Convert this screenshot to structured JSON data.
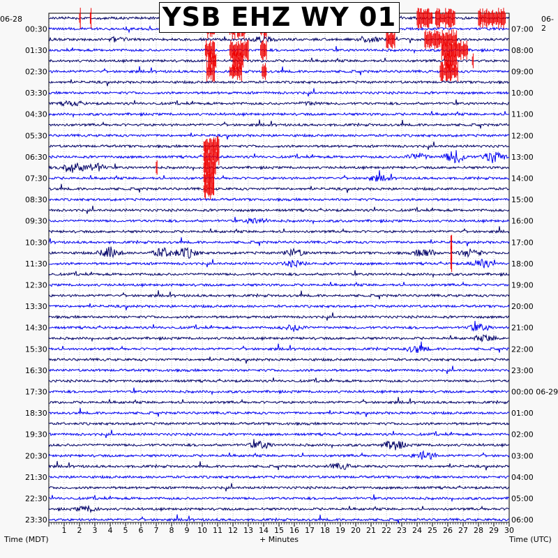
{
  "title": "YSB EHZ WY 01",
  "date_left": "06-28",
  "date_right": "06-2",
  "xlabel_left": "Time (MDT)",
  "xlabel_center": "+ Minutes",
  "xlabel_right": "Time (UTC)",
  "colors": {
    "dark_trace": "#000066",
    "blue_trace": "#0000ee",
    "clip": "#ee0000",
    "grid": "#999999"
  },
  "chart_data": {
    "type": "line",
    "title": "YSB EHZ WY 01",
    "xlabel": "+ Minutes",
    "xlim": [
      0,
      30
    ],
    "x_ticks": [
      "1",
      "2",
      "3",
      "4",
      "5",
      "6",
      "7",
      "8",
      "9",
      "10",
      "11",
      "12",
      "13",
      "14",
      "15",
      "16",
      "17",
      "18",
      "19",
      "20",
      "21",
      "22",
      "23",
      "24",
      "25",
      "26",
      "27",
      "28",
      "29",
      "30"
    ],
    "left_times": [
      "00:30",
      "01:30",
      "02:30",
      "03:30",
      "04:30",
      "05:30",
      "06:30",
      "07:30",
      "08:30",
      "09:30",
      "10:30",
      "11:30",
      "12:30",
      "13:30",
      "14:30",
      "15:30",
      "16:30",
      "17:30",
      "18:30",
      "19:30",
      "20:30",
      "21:30",
      "22:30",
      "23:30"
    ],
    "right_times": [
      "07:00",
      "08:00",
      "09:00",
      "10:00",
      "11:00",
      "12:00",
      "13:00",
      "14:00",
      "15:00",
      "16:00",
      "17:00",
      "18:00",
      "19:00",
      "20:00",
      "21:00",
      "22:00",
      "23:00",
      "00:00 06-29",
      "01:00",
      "02:00",
      "03:00",
      "04:00",
      "05:00",
      "06:00"
    ],
    "rows": 48,
    "minutes_per_row": 30,
    "trace_colors": [
      "dark",
      "blue"
    ],
    "clipped_intervals": [
      {
        "row": 0,
        "start": 2.0,
        "end": 2.1
      },
      {
        "row": 0,
        "start": 2.7,
        "end": 2.8
      },
      {
        "row": 0,
        "start": 22.0,
        "end": 22.7
      },
      {
        "row": 0,
        "start": 24.0,
        "end": 25.0
      },
      {
        "row": 0,
        "start": 25.2,
        "end": 26.5
      },
      {
        "row": 0,
        "start": 28.0,
        "end": 29.8
      },
      {
        "row": 1,
        "start": 10.3,
        "end": 10.8
      },
      {
        "row": 1,
        "start": 11.8,
        "end": 12.8
      },
      {
        "row": 1,
        "start": 13.8,
        "end": 14.2
      },
      {
        "row": 2,
        "start": 22.0,
        "end": 22.6
      },
      {
        "row": 2,
        "start": 24.5,
        "end": 26.6
      },
      {
        "row": 3,
        "start": 10.2,
        "end": 10.8
      },
      {
        "row": 3,
        "start": 11.8,
        "end": 13.0
      },
      {
        "row": 3,
        "start": 13.8,
        "end": 14.2
      },
      {
        "row": 3,
        "start": 25.6,
        "end": 27.3
      },
      {
        "row": 4,
        "start": 10.4,
        "end": 10.9
      },
      {
        "row": 4,
        "start": 12.0,
        "end": 12.7
      },
      {
        "row": 4,
        "start": 25.8,
        "end": 26.6
      },
      {
        "row": 4,
        "start": 27.6,
        "end": 27.7
      },
      {
        "row": 5,
        "start": 10.3,
        "end": 10.8
      },
      {
        "row": 5,
        "start": 11.8,
        "end": 12.6
      },
      {
        "row": 5,
        "start": 13.9,
        "end": 14.2
      },
      {
        "row": 5,
        "start": 25.5,
        "end": 26.7
      },
      {
        "row": 12,
        "start": 10.1,
        "end": 11.1
      },
      {
        "row": 13,
        "start": 10.1,
        "end": 11.1
      },
      {
        "row": 14,
        "start": 10.1,
        "end": 10.9
      },
      {
        "row": 14,
        "start": 7.0,
        "end": 7.1
      },
      {
        "row": 15,
        "start": 10.1,
        "end": 10.8
      },
      {
        "row": 16,
        "start": 10.1,
        "end": 10.8
      },
      {
        "row": 21,
        "start": 26.2,
        "end": 26.3
      },
      {
        "row": 22,
        "start": 26.2,
        "end": 26.3
      },
      {
        "row": 23,
        "start": 26.2,
        "end": 26.3
      }
    ],
    "bursts": [
      {
        "row": 2,
        "center": 4.5,
        "amp": 3
      },
      {
        "row": 2,
        "center": 14.0,
        "amp": 4
      },
      {
        "row": 2,
        "center": 21.0,
        "amp": 3
      },
      {
        "row": 8,
        "center": 1.5,
        "amp": 3
      },
      {
        "row": 8,
        "center": 17.0,
        "amp": 2
      },
      {
        "row": 14,
        "center": 1.5,
        "amp": 8
      },
      {
        "row": 14,
        "center": 3.0,
        "amp": 6
      },
      {
        "row": 13,
        "center": 26.5,
        "amp": 9
      },
      {
        "row": 13,
        "center": 29.0,
        "amp": 9
      },
      {
        "row": 13,
        "center": 24.0,
        "amp": 5
      },
      {
        "row": 15,
        "center": 21.5,
        "amp": 4
      },
      {
        "row": 19,
        "center": 13.5,
        "amp": 4
      },
      {
        "row": 22,
        "center": 4.0,
        "amp": 8
      },
      {
        "row": 22,
        "center": 7.5,
        "amp": 7
      },
      {
        "row": 22,
        "center": 9.0,
        "amp": 7
      },
      {
        "row": 22,
        "center": 16.0,
        "amp": 5
      },
      {
        "row": 22,
        "center": 24.5,
        "amp": 6
      },
      {
        "row": 22,
        "center": 27.5,
        "amp": 6
      },
      {
        "row": 23,
        "center": 28.2,
        "amp": 6
      },
      {
        "row": 23,
        "center": 16.0,
        "amp": 4
      },
      {
        "row": 29,
        "center": 28.0,
        "amp": 5
      },
      {
        "row": 29,
        "center": 16.0,
        "amp": 4
      },
      {
        "row": 31,
        "center": 24.0,
        "amp": 5
      },
      {
        "row": 30,
        "center": 28.5,
        "amp": 4
      },
      {
        "row": 40,
        "center": 13.8,
        "amp": 5
      },
      {
        "row": 40,
        "center": 22.5,
        "amp": 7
      },
      {
        "row": 41,
        "center": 24.5,
        "amp": 6
      },
      {
        "row": 42,
        "center": 19.0,
        "amp": 4
      },
      {
        "row": 46,
        "center": 2.5,
        "amp": 4
      }
    ]
  }
}
